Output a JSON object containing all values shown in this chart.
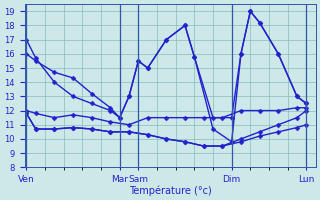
{
  "background_color": "#cce8e8",
  "grid_color": "#88bbbb",
  "line_color": "#2222cc",
  "xlabel": "Température (°c)",
  "ylim": [
    8,
    19.5
  ],
  "yticks": [
    8,
    9,
    10,
    11,
    12,
    13,
    14,
    15,
    16,
    17,
    18,
    19
  ],
  "day_labels": [
    "Ven",
    "Mar",
    "Sam",
    "Dim",
    "Lun"
  ],
  "day_positions": [
    0,
    5,
    6,
    11,
    15
  ],
  "xlim": [
    -0.1,
    15.5
  ],
  "series": [
    {
      "x": [
        0,
        0.5,
        1.5,
        2.5,
        3.5,
        4.5,
        5,
        5.5,
        6,
        6.5,
        7.5,
        8.5,
        9,
        10,
        11,
        11.5,
        12,
        12.5,
        13.5,
        14.5,
        15
      ],
      "y": [
        17,
        15.7,
        14.0,
        13.0,
        12.5,
        12.0,
        11.5,
        13.0,
        15.5,
        15.0,
        17.0,
        18.0,
        15.8,
        11.5,
        11.5,
        16.0,
        19.0,
        18.2,
        16.0,
        13.0,
        12.5
      ]
    },
    {
      "x": [
        0,
        0.5,
        1.5,
        2.5,
        3.5,
        4.5,
        5.5,
        6.5,
        7.5,
        8.5,
        9.5,
        10.5,
        11.5,
        12.5,
        13.5,
        14.5,
        15
      ],
      "y": [
        12.0,
        11.8,
        11.5,
        11.7,
        11.5,
        11.2,
        11.0,
        11.5,
        11.5,
        11.5,
        11.5,
        11.5,
        12.0,
        12.0,
        12.0,
        12.2,
        12.2
      ]
    },
    {
      "x": [
        0,
        0.5,
        1.5,
        2.5,
        3.5,
        4.5,
        5.5,
        6.5,
        7.5,
        8.5,
        9.5,
        10.5,
        11.5,
        12.5,
        13.5,
        14.5,
        15
      ],
      "y": [
        11.8,
        10.7,
        10.7,
        10.8,
        10.7,
        10.5,
        10.5,
        10.3,
        10.0,
        9.8,
        9.5,
        9.5,
        9.8,
        10.2,
        10.5,
        10.8,
        11.0
      ]
    },
    {
      "x": [
        0,
        0.5,
        1.5,
        2.5,
        3.5,
        4.5,
        5.5,
        6.5,
        7.5,
        8.5,
        9.5,
        10.5,
        11.5,
        12.5,
        13.5,
        14.5,
        15
      ],
      "y": [
        11.8,
        10.7,
        10.7,
        10.8,
        10.7,
        10.5,
        10.5,
        10.3,
        10.0,
        9.8,
        9.5,
        9.5,
        10.0,
        10.5,
        11.0,
        11.5,
        12.0
      ]
    },
    {
      "x": [
        0,
        0.5,
        1.5,
        2.5,
        3.5,
        4.5,
        5,
        5.5,
        6,
        6.5,
        7.5,
        8.5,
        9,
        10,
        11,
        11.5,
        12,
        12.5,
        13.5,
        14.5,
        15
      ],
      "y": [
        16.0,
        15.5,
        14.7,
        14.3,
        13.2,
        12.2,
        11.5,
        13.0,
        15.5,
        15.0,
        17.0,
        18.0,
        15.8,
        10.7,
        9.8,
        16.0,
        19.0,
        18.2,
        16.0,
        13.0,
        12.5
      ]
    }
  ],
  "marker": "D",
  "markersize": 2.5,
  "linewidth": 1.0
}
